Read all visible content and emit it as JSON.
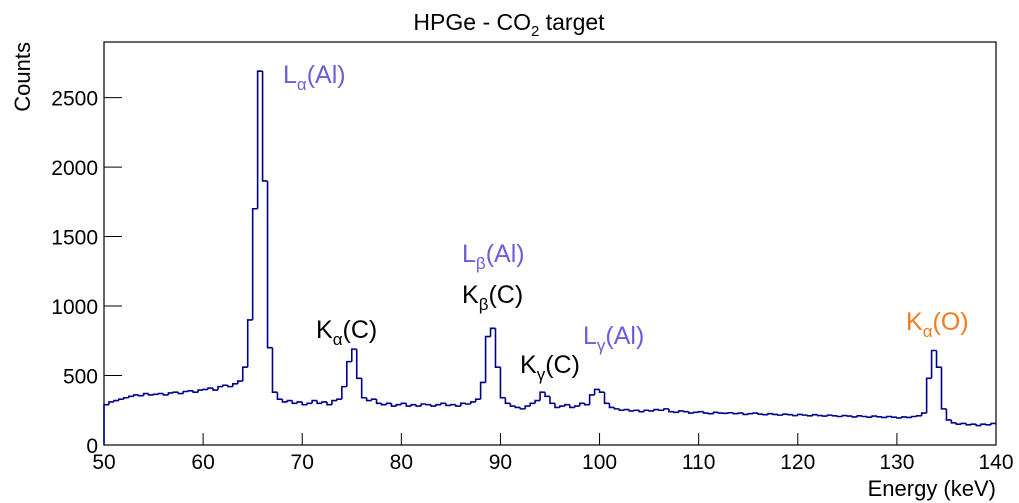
{
  "chart_data": {
    "type": "histogram",
    "title": {
      "text": "HPGe - CO",
      "sub": "2",
      "suffix": " target"
    },
    "x_label": "Energy (keV)",
    "y_label": "Counts",
    "color": "#00008b",
    "xlim": [
      50,
      140
    ],
    "ylim": [
      0,
      2900
    ],
    "xticks": [
      50,
      60,
      70,
      80,
      90,
      100,
      110,
      120,
      130,
      140
    ],
    "yticks": [
      0,
      500,
      1000,
      1500,
      2000,
      2500
    ],
    "bins": [
      50,
      50.5,
      51,
      51.5,
      52,
      52.5,
      53,
      53.5,
      54,
      54.5,
      55,
      55.5,
      56,
      56.5,
      57,
      57.5,
      58,
      58.5,
      59,
      59.5,
      60,
      60.5,
      61,
      61.5,
      62,
      62.5,
      63,
      63.5,
      64,
      64.5,
      65,
      65.5,
      66,
      66.5,
      67,
      67.5,
      68,
      68.5,
      69,
      69.5,
      70,
      70.5,
      71,
      71.5,
      72,
      72.5,
      73,
      73.5,
      74,
      74.5,
      75,
      75.5,
      76,
      76.5,
      77,
      77.5,
      78,
      78.5,
      79,
      79.5,
      80,
      80.5,
      81,
      81.5,
      82,
      82.5,
      83,
      83.5,
      84,
      84.5,
      85,
      85.5,
      86,
      86.5,
      87,
      87.5,
      88,
      88.5,
      89,
      89.5,
      90,
      90.5,
      91,
      91.5,
      92,
      92.5,
      93,
      93.5,
      94,
      94.5,
      95,
      95.5,
      96,
      96.5,
      97,
      97.5,
      98,
      98.5,
      99,
      99.5,
      100,
      100.5,
      101,
      101.5,
      102,
      102.5,
      103,
      103.5,
      104,
      104.5,
      105,
      105.5,
      106,
      106.5,
      107,
      107.5,
      108,
      108.5,
      109,
      109.5,
      110,
      110.5,
      111,
      111.5,
      112,
      112.5,
      113,
      113.5,
      114,
      114.5,
      115,
      115.5,
      116,
      116.5,
      117,
      117.5,
      118,
      118.5,
      119,
      119.5,
      120,
      120.5,
      121,
      121.5,
      122,
      122.5,
      123,
      123.5,
      124,
      124.5,
      125,
      125.5,
      126,
      126.5,
      127,
      127.5,
      128,
      128.5,
      129,
      129.5,
      130,
      130.5,
      131,
      131.5,
      132,
      132.5,
      133,
      133.5,
      134,
      134.5,
      135,
      135.5,
      136,
      136.5,
      137,
      137.5,
      138,
      138.5,
      139,
      139.5,
      140
    ],
    "values": [
      290,
      310,
      320,
      330,
      340,
      350,
      360,
      355,
      370,
      360,
      365,
      370,
      360,
      375,
      380,
      370,
      385,
      390,
      380,
      395,
      400,
      410,
      395,
      420,
      430,
      420,
      440,
      460,
      560,
      900,
      1700,
      2690,
      1900,
      700,
      380,
      330,
      310,
      320,
      300,
      310,
      290,
      300,
      320,
      300,
      310,
      290,
      320,
      330,
      420,
      600,
      690,
      480,
      340,
      320,
      330,
      300,
      290,
      300,
      280,
      290,
      300,
      280,
      290,
      280,
      295,
      290,
      280,
      290,
      300,
      285,
      290,
      280,
      300,
      295,
      310,
      330,
      450,
      780,
      840,
      560,
      340,
      300,
      280,
      270,
      260,
      280,
      300,
      320,
      380,
      350,
      300,
      270,
      280,
      290,
      270,
      280,
      300,
      290,
      360,
      400,
      380,
      300,
      270,
      260,
      250,
      255,
      245,
      250,
      240,
      250,
      245,
      255,
      250,
      260,
      240,
      235,
      245,
      240,
      230,
      235,
      240,
      230,
      225,
      235,
      230,
      228,
      232,
      225,
      230,
      220,
      225,
      230,
      222,
      218,
      225,
      220,
      215,
      222,
      218,
      212,
      220,
      215,
      210,
      218,
      212,
      208,
      215,
      210,
      205,
      212,
      208,
      202,
      210,
      205,
      200,
      208,
      203,
      198,
      205,
      200,
      195,
      202,
      198,
      205,
      210,
      230,
      480,
      680,
      560,
      260,
      180,
      160,
      150,
      155,
      145,
      150,
      140,
      150,
      145,
      155
    ],
    "annotations": [
      {
        "text": "L",
        "sub": "α",
        "suffix": "(Al)",
        "color": "#6a5fd8"
      },
      {
        "text": "L",
        "sub": "β",
        "suffix": "(Al)",
        "color": "#6a5fd8"
      },
      {
        "text": "K",
        "sub": "β",
        "suffix": "(C)",
        "color": "#000000"
      },
      {
        "text": "K",
        "sub": "α",
        "suffix": "(C)",
        "color": "#000000"
      },
      {
        "text": "K",
        "sub": "γ",
        "suffix": "(C)",
        "color": "#000000"
      },
      {
        "text": "L",
        "sub": "γ",
        "suffix": "(Al)",
        "color": "#6a5fd8"
      },
      {
        "text": "K",
        "sub": "α",
        "suffix": "(O)",
        "color": "#f47a1c"
      }
    ]
  }
}
